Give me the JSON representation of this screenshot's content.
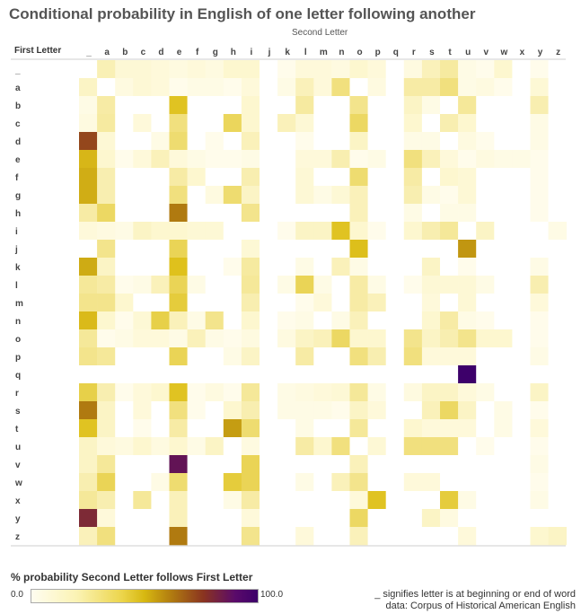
{
  "title": "Conditional probability in English of one letter following another",
  "legend": {
    "title": "% probability Second Letter follows First Letter",
    "min": "0.0",
    "max": "100.0"
  },
  "notes": {
    "line1": "_ signifies letter is at  beginning or end of word",
    "line2": "data: Corpus of Historical American English"
  },
  "colors": {
    "low": "#fffdf0",
    "mid": "#d7b811",
    "high": "#8a3420",
    "max": "#3d006a"
  },
  "chart_data": {
    "type": "heatmap",
    "xlabel": "Second Letter",
    "ylabel": "First Letter",
    "x": [
      "_",
      "a",
      "b",
      "c",
      "d",
      "e",
      "f",
      "g",
      "h",
      "i",
      "j",
      "k",
      "l",
      "m",
      "n",
      "o",
      "p",
      "q",
      "r",
      "s",
      "t",
      "u",
      "v",
      "w",
      "x",
      "y",
      "z"
    ],
    "y": [
      "_",
      "a",
      "b",
      "c",
      "d",
      "e",
      "f",
      "g",
      "h",
      "i",
      "j",
      "k",
      "l",
      "m",
      "n",
      "o",
      "p",
      "q",
      "r",
      "s",
      "t",
      "u",
      "v",
      "w",
      "x",
      "y",
      "z"
    ],
    "zlim": [
      0,
      100
    ],
    "values": [
      [
        0,
        11,
        5,
        5,
        4,
        3,
        4,
        3,
        6,
        6,
        0,
        1,
        4,
        4,
        3,
        6,
        4,
        0,
        3,
        10,
        15,
        2,
        1,
        6,
        0,
        1,
        0
      ],
      [
        8,
        0,
        3,
        5,
        4,
        1,
        2,
        2,
        1,
        4,
        0,
        2,
        10,
        4,
        20,
        0,
        3,
        0,
        14,
        14,
        20,
        2,
        3,
        1,
        0,
        5,
        0
      ],
      [
        2,
        14,
        0,
        0,
        0,
        34,
        0,
        0,
        0,
        6,
        0,
        0,
        15,
        0,
        0,
        18,
        0,
        0,
        8,
        2,
        0,
        16,
        0,
        0,
        0,
        12,
        0
      ],
      [
        3,
        15,
        0,
        4,
        0,
        20,
        0,
        0,
        25,
        6,
        0,
        10,
        5,
        0,
        0,
        24,
        0,
        0,
        6,
        0,
        12,
        6,
        0,
        0,
        0,
        2,
        0
      ],
      [
        72,
        5,
        0,
        0,
        2,
        22,
        0,
        1,
        0,
        10,
        0,
        0,
        1,
        0,
        0,
        8,
        0,
        0,
        2,
        2,
        0,
        3,
        1,
        0,
        0,
        2,
        0
      ],
      [
        40,
        6,
        1,
        4,
        10,
        4,
        2,
        1,
        1,
        2,
        0,
        0,
        4,
        4,
        12,
        1,
        2,
        0,
        20,
        10,
        4,
        1,
        3,
        2,
        2,
        1,
        0
      ],
      [
        44,
        12,
        0,
        0,
        0,
        14,
        6,
        0,
        0,
        12,
        0,
        0,
        5,
        0,
        0,
        22,
        0,
        0,
        14,
        0,
        6,
        5,
        0,
        0,
        0,
        1,
        0
      ],
      [
        44,
        12,
        0,
        0,
        0,
        20,
        0,
        3,
        22,
        8,
        0,
        0,
        5,
        2,
        5,
        10,
        0,
        0,
        12,
        2,
        1,
        5,
        0,
        0,
        0,
        1,
        0
      ],
      [
        14,
        24,
        0,
        0,
        0,
        60,
        0,
        0,
        0,
        18,
        0,
        0,
        0,
        0,
        0,
        10,
        0,
        0,
        2,
        0,
        2,
        2,
        0,
        0,
        0,
        1,
        0
      ],
      [
        4,
        3,
        2,
        8,
        6,
        6,
        5,
        5,
        0,
        0,
        0,
        1,
        8,
        8,
        34,
        6,
        1,
        0,
        6,
        12,
        16,
        0,
        8,
        0,
        0,
        0,
        2
      ],
      [
        0,
        18,
        0,
        0,
        0,
        26,
        0,
        0,
        0,
        5,
        0,
        0,
        0,
        0,
        0,
        36,
        0,
        0,
        0,
        0,
        0,
        52,
        0,
        0,
        0,
        0,
        0
      ],
      [
        45,
        8,
        0,
        0,
        0,
        35,
        0,
        0,
        1,
        15,
        0,
        0,
        2,
        0,
        10,
        2,
        0,
        0,
        0,
        8,
        0,
        1,
        0,
        0,
        0,
        2,
        0
      ],
      [
        16,
        14,
        1,
        2,
        10,
        26,
        2,
        0,
        0,
        16,
        0,
        2,
        26,
        2,
        0,
        14,
        2,
        0,
        1,
        5,
        5,
        5,
        2,
        0,
        0,
        12,
        0
      ],
      [
        18,
        18,
        6,
        0,
        0,
        30,
        0,
        0,
        0,
        12,
        0,
        0,
        1,
        4,
        0,
        14,
        10,
        0,
        0,
        4,
        0,
        5,
        0,
        0,
        0,
        4,
        0
      ],
      [
        38,
        6,
        1,
        5,
        28,
        10,
        2,
        18,
        0,
        6,
        0,
        1,
        2,
        0,
        2,
        10,
        0,
        0,
        0,
        6,
        14,
        2,
        1,
        0,
        0,
        1,
        0
      ],
      [
        16,
        1,
        2,
        4,
        4,
        2,
        10,
        2,
        1,
        3,
        0,
        3,
        8,
        10,
        24,
        6,
        6,
        0,
        18,
        8,
        12,
        18,
        6,
        6,
        0,
        1,
        0
      ],
      [
        18,
        16,
        0,
        0,
        0,
        26,
        0,
        0,
        2,
        8,
        0,
        0,
        14,
        0,
        0,
        20,
        12,
        0,
        20,
        4,
        4,
        4,
        0,
        0,
        0,
        2,
        0
      ],
      [
        0,
        0,
        0,
        0,
        0,
        0,
        0,
        0,
        0,
        0,
        0,
        0,
        0,
        0,
        0,
        0,
        0,
        0,
        0,
        0,
        0,
        100,
        0,
        0,
        0,
        0,
        0
      ],
      [
        28,
        12,
        1,
        4,
        6,
        34,
        1,
        3,
        1,
        16,
        0,
        2,
        3,
        4,
        5,
        16,
        2,
        0,
        3,
        8,
        8,
        4,
        2,
        0,
        0,
        8,
        0
      ],
      [
        60,
        8,
        0,
        4,
        0,
        20,
        1,
        0,
        6,
        12,
        0,
        2,
        2,
        2,
        1,
        8,
        4,
        0,
        0,
        10,
        24,
        8,
        0,
        2,
        0,
        1,
        0
      ],
      [
        34,
        8,
        0,
        1,
        0,
        14,
        0,
        0,
        50,
        22,
        0,
        0,
        2,
        0,
        0,
        16,
        0,
        0,
        6,
        4,
        4,
        4,
        0,
        2,
        0,
        4,
        0
      ],
      [
        8,
        4,
        3,
        6,
        3,
        6,
        2,
        8,
        0,
        3,
        0,
        0,
        14,
        6,
        20,
        0,
        5,
        0,
        20,
        20,
        20,
        0,
        1,
        0,
        0,
        1,
        0
      ],
      [
        8,
        16,
        0,
        0,
        0,
        92,
        0,
        0,
        0,
        26,
        0,
        0,
        0,
        0,
        0,
        10,
        0,
        0,
        0,
        0,
        0,
        0,
        0,
        0,
        0,
        2,
        0
      ],
      [
        12,
        26,
        0,
        0,
        2,
        22,
        0,
        0,
        30,
        26,
        0,
        0,
        2,
        0,
        10,
        18,
        0,
        0,
        4,
        4,
        0,
        0,
        0,
        0,
        0,
        1,
        0
      ],
      [
        16,
        12,
        0,
        16,
        0,
        10,
        0,
        0,
        2,
        14,
        0,
        0,
        0,
        0,
        0,
        4,
        34,
        0,
        0,
        0,
        30,
        2,
        0,
        0,
        0,
        2,
        0
      ],
      [
        82,
        4,
        0,
        0,
        0,
        10,
        0,
        0,
        0,
        4,
        0,
        0,
        0,
        0,
        0,
        24,
        0,
        0,
        0,
        8,
        3,
        0,
        0,
        0,
        0,
        0,
        0
      ],
      [
        10,
        20,
        0,
        0,
        0,
        60,
        0,
        0,
        0,
        18,
        0,
        0,
        4,
        0,
        0,
        10,
        0,
        0,
        0,
        0,
        0,
        4,
        0,
        0,
        0,
        6,
        8
      ]
    ]
  }
}
